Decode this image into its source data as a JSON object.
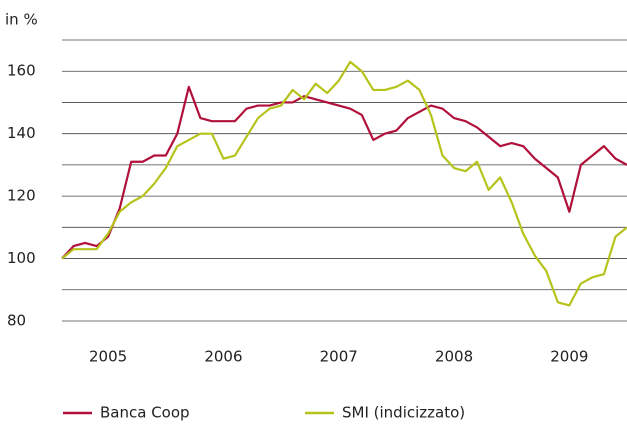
{
  "chart_data": {
    "type": "line",
    "y_label": "in %",
    "x": [
      2005.1,
      2005.2,
      2005.3,
      2005.4,
      2005.5,
      2005.6,
      2005.7,
      2005.8,
      2005.9,
      2006.0,
      2006.1,
      2006.2,
      2006.3,
      2006.4,
      2006.5,
      2006.6,
      2006.7,
      2006.8,
      2006.9,
      2007.0,
      2007.1,
      2007.2,
      2007.3,
      2007.4,
      2007.5,
      2007.6,
      2007.7,
      2007.8,
      2007.9,
      2008.0,
      2008.1,
      2008.2,
      2008.3,
      2008.4,
      2008.5,
      2008.6,
      2008.7,
      2008.8,
      2008.9,
      2009.0,
      2009.1,
      2009.2,
      2009.3,
      2009.4,
      2009.5,
      2009.6,
      2009.7,
      2009.8,
      2009.9,
      2010.0
    ],
    "series": [
      {
        "name": "Banca Coop",
        "color": "#b0103a",
        "values": [
          100,
          104,
          105,
          104,
          107,
          116,
          131,
          131,
          133,
          133,
          140,
          155,
          145,
          144,
          144,
          144,
          148,
          149,
          149,
          150,
          150,
          152,
          151,
          150,
          149,
          148,
          146,
          138,
          140,
          141,
          145,
          147,
          149,
          148,
          145,
          144,
          142,
          139,
          136,
          137,
          136,
          132,
          129,
          126,
          115,
          130,
          133,
          136,
          132,
          130
        ]
      },
      {
        "name": "SMI (indicizzato)",
        "color": "#b5c31a",
        "values": [
          100,
          103,
          103,
          103,
          108,
          115,
          118,
          120,
          124,
          129,
          136,
          138,
          140,
          140,
          132,
          133,
          139,
          145,
          148,
          149,
          154,
          151,
          156,
          153,
          157,
          163,
          160,
          154,
          154,
          155,
          157,
          154,
          146,
          133,
          129,
          128,
          131,
          122,
          126,
          118,
          108,
          101,
          96,
          86,
          85,
          92,
          94,
          95,
          107,
          110
        ]
      }
    ],
    "xlim": [
      2005.1,
      2010.0
    ],
    "xticks": [
      {
        "value": 2005.5,
        "label": "2005"
      },
      {
        "value": 2006.5,
        "label": "2006"
      },
      {
        "value": 2007.5,
        "label": "2007"
      },
      {
        "value": 2008.5,
        "label": "2008"
      },
      {
        "value": 2009.5,
        "label": "2009"
      }
    ],
    "ylim": [
      80,
      170
    ],
    "yticks": [
      80,
      100,
      120,
      140,
      160
    ],
    "minor_yticks": [
      90,
      110,
      130,
      150,
      170
    ],
    "grid": true
  }
}
